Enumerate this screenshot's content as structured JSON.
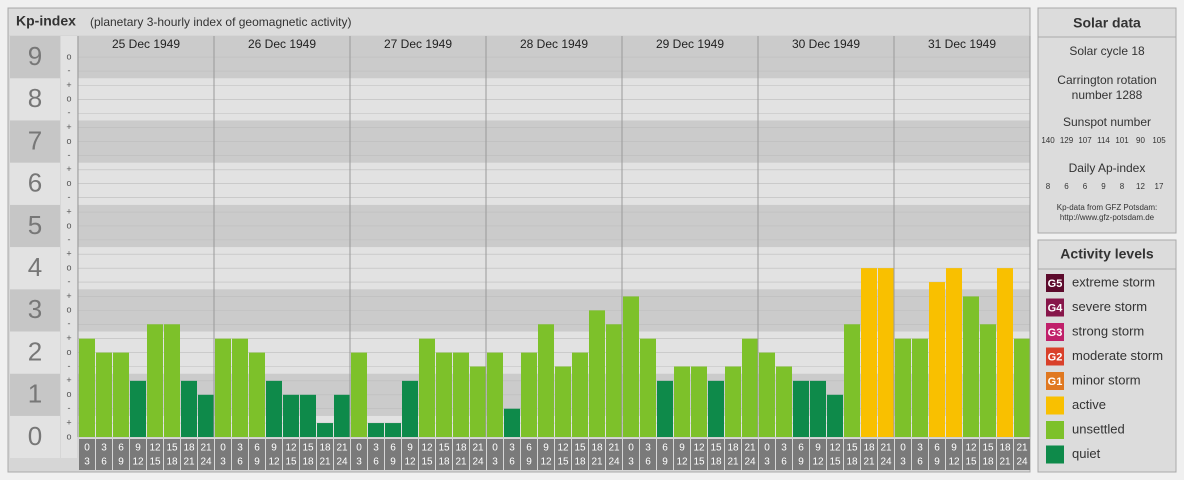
{
  "chart_data": {
    "type": "bar",
    "title": "Kp-index",
    "subtitle": "(planetary 3-hourly index of geomagnetic activity)",
    "ylim": [
      0,
      9.5
    ],
    "yticks": [
      0,
      1,
      2,
      3,
      4,
      5,
      6,
      7,
      8,
      9
    ],
    "grid": true,
    "minor_yticks": [
      {
        "value": 0,
        "label": "o"
      },
      {
        "value": 0.33,
        "label": "+"
      },
      {
        "value": 0.67,
        "label": "-"
      },
      {
        "value": 1,
        "label": "o"
      },
      {
        "value": 1.33,
        "label": "+"
      },
      {
        "value": 1.67,
        "label": "-"
      },
      {
        "value": 2,
        "label": "o"
      },
      {
        "value": 2.33,
        "label": "+"
      },
      {
        "value": 2.67,
        "label": "-"
      },
      {
        "value": 3,
        "label": "o"
      },
      {
        "value": 3.33,
        "label": "+"
      },
      {
        "value": 3.67,
        "label": "-"
      },
      {
        "value": 4,
        "label": "o"
      },
      {
        "value": 4.33,
        "label": "+"
      },
      {
        "value": 4.67,
        "label": "-"
      },
      {
        "value": 5,
        "label": "o"
      },
      {
        "value": 5.33,
        "label": "+"
      },
      {
        "value": 5.67,
        "label": "-"
      },
      {
        "value": 6,
        "label": "o"
      },
      {
        "value": 6.33,
        "label": "+"
      },
      {
        "value": 6.67,
        "label": "-"
      },
      {
        "value": 7,
        "label": "o"
      },
      {
        "value": 7.33,
        "label": "+"
      },
      {
        "value": 7.67,
        "label": "-"
      },
      {
        "value": 8,
        "label": "o"
      },
      {
        "value": 8.33,
        "label": "+"
      },
      {
        "value": 8.67,
        "label": "-"
      },
      {
        "value": 9,
        "label": "o"
      }
    ],
    "hour_bins": [
      0,
      3,
      6,
      9,
      12,
      15,
      18,
      21,
      24
    ],
    "days": [
      {
        "date": "25 Dec 1949",
        "values": [
          2.33,
          2,
          2,
          1.33,
          2.67,
          2.67,
          1.33,
          1
        ],
        "colors": [
          "#7dc12a",
          "#7dc12a",
          "#7dc12a",
          "#0e8a4a",
          "#7dc12a",
          "#7dc12a",
          "#0e8a4a",
          "#0e8a4a"
        ]
      },
      {
        "date": "26 Dec 1949",
        "values": [
          2.33,
          2.33,
          2,
          1.33,
          1,
          1,
          0.33,
          1
        ],
        "colors": [
          "#7dc12a",
          "#7dc12a",
          "#7dc12a",
          "#0e8a4a",
          "#0e8a4a",
          "#0e8a4a",
          "#0e8a4a",
          "#0e8a4a"
        ]
      },
      {
        "date": "27 Dec 1949",
        "values": [
          2,
          0.33,
          0.33,
          1.33,
          2.33,
          2,
          2,
          1.67
        ],
        "colors": [
          "#7dc12a",
          "#0e8a4a",
          "#0e8a4a",
          "#0e8a4a",
          "#7dc12a",
          "#7dc12a",
          "#7dc12a",
          "#7dc12a"
        ]
      },
      {
        "date": "28 Dec 1949",
        "values": [
          2,
          0.67,
          2,
          2.67,
          1.67,
          2,
          3,
          2.67
        ],
        "colors": [
          "#7dc12a",
          "#0e8a4a",
          "#7dc12a",
          "#7dc12a",
          "#7dc12a",
          "#7dc12a",
          "#7dc12a",
          "#7dc12a"
        ]
      },
      {
        "date": "29 Dec 1949",
        "values": [
          3.33,
          2.33,
          1.33,
          1.67,
          1.67,
          1.33,
          1.67,
          2.33
        ],
        "colors": [
          "#7dc12a",
          "#7dc12a",
          "#0e8a4a",
          "#7dc12a",
          "#7dc12a",
          "#0e8a4a",
          "#7dc12a",
          "#7dc12a"
        ]
      },
      {
        "date": "30 Dec 1949",
        "values": [
          2,
          1.67,
          1.33,
          1.33,
          1,
          2.67,
          4,
          4
        ],
        "colors": [
          "#7dc12a",
          "#7dc12a",
          "#0e8a4a",
          "#0e8a4a",
          "#0e8a4a",
          "#7dc12a",
          "#f9c000",
          "#f9c000"
        ]
      },
      {
        "date": "31 Dec 1949",
        "values": [
          2.33,
          2.33,
          3.67,
          4,
          3.33,
          2.67,
          4,
          2.33
        ],
        "colors": [
          "#7dc12a",
          "#7dc12a",
          "#f9c000",
          "#f9c000",
          "#7dc12a",
          "#7dc12a",
          "#f9c000",
          "#7dc12a"
        ]
      }
    ]
  },
  "solar_data": {
    "title": "Solar data",
    "solar_cycle": "Solar cycle 18",
    "carrington": [
      "Carrington rotation",
      "number 1288"
    ],
    "sunspot_title": "Sunspot number",
    "sunspot_numbers": [
      140,
      129,
      107,
      114,
      101,
      90,
      105
    ],
    "ap_title": "Daily Ap-index",
    "ap_index": [
      8,
      6,
      6,
      9,
      8,
      12,
      17
    ],
    "source": [
      "Kp-data from GFZ Potsdam:",
      "http://www.gfz-potsdam.de"
    ]
  },
  "activity_levels": {
    "title": "Activity levels",
    "items": [
      {
        "code": "G5",
        "label": "extreme storm",
        "color": "#5c0a2c"
      },
      {
        "code": "G4",
        "label": "severe storm",
        "color": "#87164a"
      },
      {
        "code": "G3",
        "label": "strong storm",
        "color": "#c0206a"
      },
      {
        "code": "G2",
        "label": "moderate storm",
        "color": "#d9402a"
      },
      {
        "code": "G1",
        "label": "minor storm",
        "color": "#e07820"
      },
      {
        "code": null,
        "label": "active",
        "color": "#f9c000"
      },
      {
        "code": null,
        "label": "unsettled",
        "color": "#7dc12a"
      },
      {
        "code": null,
        "label": "quiet",
        "color": "#0e8a4a"
      }
    ]
  }
}
